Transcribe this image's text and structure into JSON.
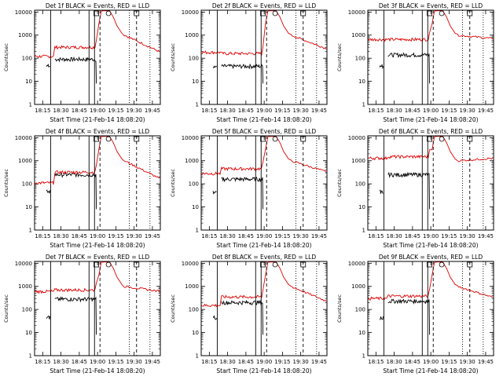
{
  "colors": {
    "events": "#000000",
    "lld": "#e00000",
    "axis": "#000000",
    "background": "#ffffff"
  },
  "shared": {
    "ylabel": "Counts/sec",
    "xlabel": "Start Time (21-Feb-14 18:08:20)",
    "xticks": [
      "18:15",
      "18:30",
      "18:45",
      "19:00",
      "19:15",
      "19:30",
      "19:45"
    ],
    "yticks": [
      "1",
      "10",
      "100",
      "1000",
      "10000"
    ],
    "y_scale": "log",
    "ylim": [
      1,
      12000
    ],
    "xlim_minutes_after_1800": [
      8.333,
      51.5
    ]
  },
  "chart_data": [
    {
      "type": "line",
      "title": "Det 1f BLACK = Events, RED = LLD",
      "events_level": 90,
      "lld_pre": 120,
      "lld_mid": 300,
      "lld_post": 180,
      "drop_minute": 28.5,
      "series": [
        {
          "name": "Events",
          "color": "#000000"
        },
        {
          "name": "LLD",
          "color": "#e00000"
        }
      ]
    },
    {
      "type": "line",
      "title": "Det 2f BLACK = Events, RED = LLD",
      "events_level": 45,
      "lld_pre": 180,
      "lld_mid": 160,
      "lld_post": 250,
      "drop_minute": 28.5,
      "series": [
        {
          "name": "Events",
          "color": "#000000"
        },
        {
          "name": "LLD",
          "color": "#e00000"
        }
      ]
    },
    {
      "type": "line",
      "title": "Det 3f BLACK = Events, RED = LLD",
      "events_level": 140,
      "lld_pre": 650,
      "lld_mid": 650,
      "lld_post": 700,
      "drop_minute": 28.5,
      "series": [
        {
          "name": "Events",
          "color": "#000000"
        },
        {
          "name": "LLD",
          "color": "#e00000"
        }
      ]
    },
    {
      "type": "line",
      "title": "Det 4f BLACK = Events, RED = LLD",
      "events_level": 250,
      "lld_pre": 110,
      "lld_mid": 320,
      "lld_post": 160,
      "drop_minute": 28.5,
      "series": [
        {
          "name": "Events",
          "color": "#000000"
        },
        {
          "name": "LLD",
          "color": "#e00000"
        }
      ]
    },
    {
      "type": "line",
      "title": "Det 5f BLACK = Events, RED = LLD",
      "events_level": 160,
      "lld_pre": 280,
      "lld_mid": 450,
      "lld_post": 320,
      "drop_minute": 28.5,
      "series": [
        {
          "name": "Events",
          "color": "#000000"
        },
        {
          "name": "LLD",
          "color": "#e00000"
        }
      ]
    },
    {
      "type": "line",
      "title": "Det 6f BLACK = Events, RED = LLD",
      "events_level": 250,
      "lld_pre": 1300,
      "lld_mid": 1500,
      "lld_post": 1300,
      "drop_minute": 28.5,
      "series": [
        {
          "name": "Events",
          "color": "#000000"
        },
        {
          "name": "LLD",
          "color": "#e00000"
        }
      ]
    },
    {
      "type": "line",
      "title": "Det 7f BLACK = Events, RED = LLD",
      "events_level": 280,
      "lld_pre": 600,
      "lld_mid": 700,
      "lld_post": 600,
      "drop_minute": 28.5,
      "series": [
        {
          "name": "Events",
          "color": "#000000"
        },
        {
          "name": "LLD",
          "color": "#e00000"
        }
      ]
    },
    {
      "type": "line",
      "title": "Det 8f BLACK = Events, RED = LLD",
      "events_level": 200,
      "lld_pre": 150,
      "lld_mid": 350,
      "lld_post": 220,
      "drop_minute": 28.5,
      "series": [
        {
          "name": "Events",
          "color": "#000000"
        },
        {
          "name": "LLD",
          "color": "#e00000"
        }
      ]
    },
    {
      "type": "line",
      "title": "Det 9f BLACK = Events, RED = LLD",
      "events_level": 230,
      "lld_pre": 300,
      "lld_mid": 380,
      "lld_post": 320,
      "drop_minute": 28.5,
      "series": [
        {
          "name": "Events",
          "color": "#000000"
        },
        {
          "name": "LLD",
          "color": "#e00000"
        }
      ]
    }
  ]
}
